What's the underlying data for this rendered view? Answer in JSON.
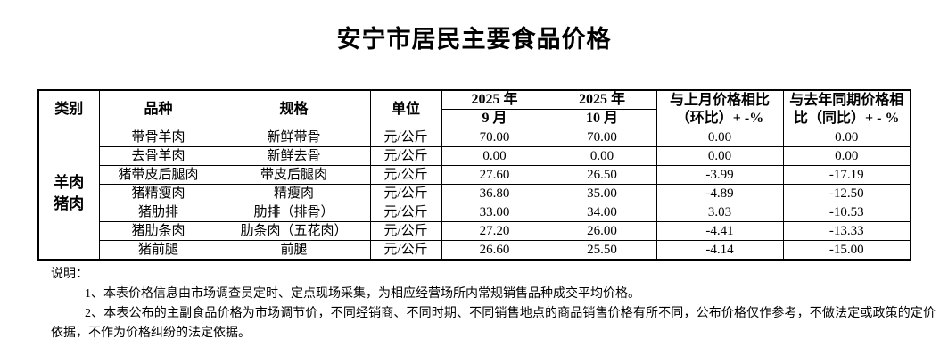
{
  "colors": {
    "text": "#000000",
    "border": "#000000",
    "background": "#ffffff"
  },
  "title": "安宁市居民主要食品价格",
  "table": {
    "headers": {
      "category": "类别",
      "variety": "品种",
      "spec": "规格",
      "unit": "单位",
      "period1_year": "2025 年",
      "period1_month": "9 月",
      "period2_year": "2025 年",
      "period2_month": "10 月",
      "mom_line1": "与上月价格相比",
      "mom_line2": "（环比）+ -%",
      "yoy_line1": "与去年同期价格相",
      "yoy_line2": "比（同比）+ - %"
    },
    "category_line1": "羊肉",
    "category_line2": "猪肉",
    "rows": [
      {
        "variety": "带骨羊肉",
        "spec": "新鲜带骨",
        "unit": "元/公斤",
        "sep": "70.00",
        "oct": "70.00",
        "mom": "0.00",
        "yoy": "0.00"
      },
      {
        "variety": "去骨羊肉",
        "spec": "新鲜去骨",
        "unit": "元/公斤",
        "sep": "0.00",
        "oct": "0.00",
        "mom": "0.00",
        "yoy": "0.00"
      },
      {
        "variety": "猪带皮后腿肉",
        "spec": "带皮后腿肉",
        "unit": "元/公斤",
        "sep": "27.60",
        "oct": "26.50",
        "mom": "-3.99",
        "yoy": "-17.19"
      },
      {
        "variety": "猪精瘦肉",
        "spec": "精瘦肉",
        "unit": "元/公斤",
        "sep": "36.80",
        "oct": "35.00",
        "mom": "-4.89",
        "yoy": "-12.50"
      },
      {
        "variety": "猪肋排",
        "spec": "肋排（排骨）",
        "unit": "元/公斤",
        "sep": "33.00",
        "oct": "34.00",
        "mom": "3.03",
        "yoy": "-10.53"
      },
      {
        "variety": "猪肋条肉",
        "spec": "肋条肉（五花肉）",
        "unit": "元/公斤",
        "sep": "27.20",
        "oct": "26.00",
        "mom": "-4.41",
        "yoy": "-13.33"
      },
      {
        "variety": "猪前腿",
        "spec": "前腿",
        "unit": "元/公斤",
        "sep": "26.60",
        "oct": "25.50",
        "mom": "-4.14",
        "yoy": "-15.00"
      }
    ]
  },
  "notes": {
    "label": "说明：",
    "items": [
      "1、本表价格信息由市场调查员定时、定点现场采集，为相应经营场所内常规销售品种成交平均价格。",
      "2、本表公布的主副食品价格为市场调节价，不同经销商、不同时期、不同销售地点的商品销售价格有所不同，公布价格仅作参考，不做法定或政策的定价依据，不作为价格纠纷的法定依据。"
    ]
  }
}
